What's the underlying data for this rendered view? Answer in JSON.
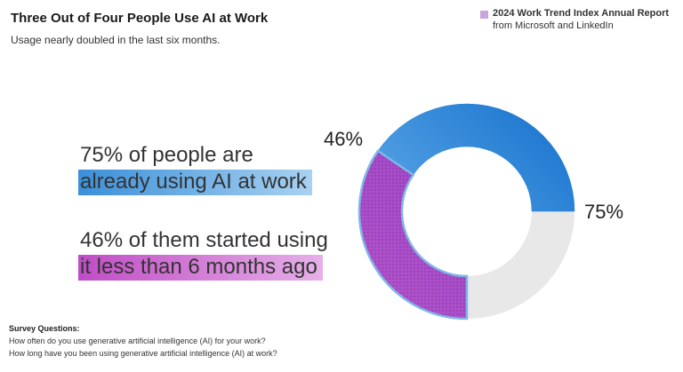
{
  "chart_data": {
    "type": "donut",
    "title": "Three Out of Four People Use AI at Work",
    "subtitle": "Usage nearly doubled in the last six months.",
    "legend": {
      "title": "2024 Work Trend Index Annual Report",
      "subtitle": "from Microsoft and LinkedIn",
      "color": "#c9a2de"
    },
    "values": [
      75,
      46
    ],
    "value_labels": [
      "75%",
      "46%"
    ],
    "colors": [
      "#1f80d6",
      "#b53ec4"
    ],
    "remainder_color": "#e8e8e8",
    "callouts": [
      {
        "line": "75% of people are",
        "highlight": "already using AI at work"
      },
      {
        "line": "46% of them started using",
        "highlight": "it less than 6 months ago"
      }
    ],
    "notes": {
      "heading": "Survey Questions:",
      "lines": [
        "How often do you use generative artificial intelligence (AI) for your work?",
        "How long have you been using generative artificial intelligence (AI) at work?"
      ]
    }
  }
}
